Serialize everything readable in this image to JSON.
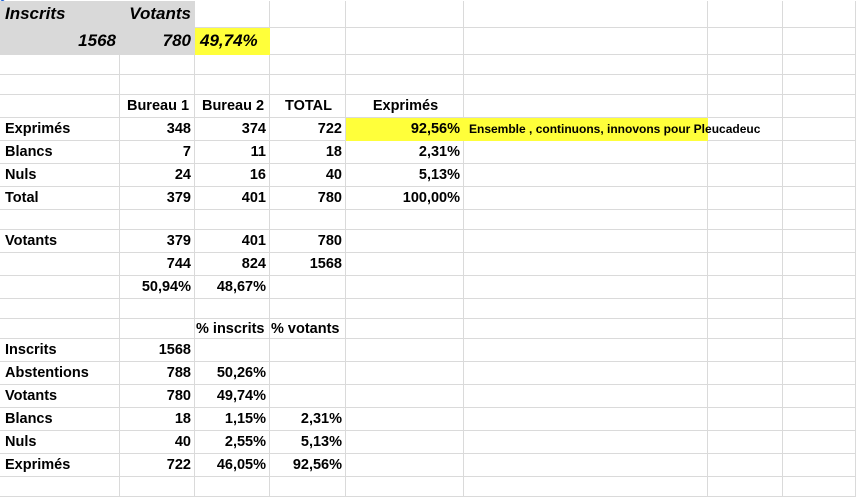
{
  "colors": {
    "highlight": "#ffff3a",
    "header_fill": "#d9d9d9",
    "gridline": "#dadada"
  },
  "rows": [
    [
      {
        "v": "Inscrits",
        "s": "gray top"
      },
      {
        "v": "Votants",
        "s": "gray top num"
      },
      {
        "v": ""
      },
      {
        "v": ""
      },
      {
        "v": ""
      },
      {
        "v": ""
      },
      {
        "v": ""
      },
      {
        "v": ""
      }
    ],
    [
      {
        "v": "1568",
        "s": "gray top num"
      },
      {
        "v": "780",
        "s": "gray top num"
      },
      {
        "v": "49,74%",
        "s": "yellow top"
      },
      {
        "v": ""
      },
      {
        "v": ""
      },
      {
        "v": ""
      },
      {
        "v": ""
      },
      {
        "v": ""
      }
    ],
    [
      {
        "v": ""
      },
      {
        "v": ""
      },
      {
        "v": ""
      },
      {
        "v": ""
      },
      {
        "v": ""
      },
      {
        "v": ""
      },
      {
        "v": ""
      },
      {
        "v": ""
      }
    ],
    [
      {
        "v": ""
      },
      {
        "v": ""
      },
      {
        "v": ""
      },
      {
        "v": ""
      },
      {
        "v": ""
      },
      {
        "v": ""
      },
      {
        "v": ""
      },
      {
        "v": ""
      }
    ],
    [
      {
        "v": ""
      },
      {
        "v": "Bureau 1",
        "s": "center"
      },
      {
        "v": "Bureau 2",
        "s": "center"
      },
      {
        "v": "TOTAL",
        "s": "center"
      },
      {
        "v": "Exprimés",
        "s": "center"
      },
      {
        "v": ""
      },
      {
        "v": ""
      },
      {
        "v": ""
      }
    ],
    [
      {
        "v": "Exprimés"
      },
      {
        "v": "348",
        "s": "num"
      },
      {
        "v": "374",
        "s": "num"
      },
      {
        "v": "722",
        "s": "num"
      },
      {
        "v": "92,56%",
        "s": "yellow num"
      },
      {
        "v": "Ensemble , continuons, innovons pour Pleucadeuc",
        "s": "yellow small"
      },
      {
        "v": ""
      },
      {
        "v": ""
      }
    ],
    [
      {
        "v": "Blancs"
      },
      {
        "v": "7",
        "s": "num"
      },
      {
        "v": "11",
        "s": "num"
      },
      {
        "v": "18",
        "s": "num"
      },
      {
        "v": "2,31%",
        "s": "num"
      },
      {
        "v": ""
      },
      {
        "v": ""
      },
      {
        "v": ""
      }
    ],
    [
      {
        "v": "Nuls"
      },
      {
        "v": "24",
        "s": "num"
      },
      {
        "v": "16",
        "s": "num"
      },
      {
        "v": "40",
        "s": "num"
      },
      {
        "v": "5,13%",
        "s": "num"
      },
      {
        "v": ""
      },
      {
        "v": ""
      },
      {
        "v": ""
      }
    ],
    [
      {
        "v": "Total"
      },
      {
        "v": "379",
        "s": "num"
      },
      {
        "v": "401",
        "s": "num"
      },
      {
        "v": "780",
        "s": "num"
      },
      {
        "v": "100,00%",
        "s": "num"
      },
      {
        "v": ""
      },
      {
        "v": ""
      },
      {
        "v": ""
      }
    ],
    [
      {
        "v": ""
      },
      {
        "v": ""
      },
      {
        "v": ""
      },
      {
        "v": ""
      },
      {
        "v": ""
      },
      {
        "v": ""
      },
      {
        "v": ""
      },
      {
        "v": ""
      }
    ],
    [
      {
        "v": "Votants"
      },
      {
        "v": "379",
        "s": "num"
      },
      {
        "v": "401",
        "s": "num"
      },
      {
        "v": "780",
        "s": "num"
      },
      {
        "v": ""
      },
      {
        "v": ""
      },
      {
        "v": ""
      },
      {
        "v": ""
      }
    ],
    [
      {
        "v": ""
      },
      {
        "v": "744",
        "s": "num"
      },
      {
        "v": "824",
        "s": "num"
      },
      {
        "v": "1568",
        "s": "num"
      },
      {
        "v": ""
      },
      {
        "v": ""
      },
      {
        "v": ""
      },
      {
        "v": ""
      }
    ],
    [
      {
        "v": ""
      },
      {
        "v": "50,94%",
        "s": "num"
      },
      {
        "v": "48,67%",
        "s": "num"
      },
      {
        "v": ""
      },
      {
        "v": ""
      },
      {
        "v": ""
      },
      {
        "v": ""
      },
      {
        "v": ""
      }
    ],
    [
      {
        "v": ""
      },
      {
        "v": ""
      },
      {
        "v": ""
      },
      {
        "v": ""
      },
      {
        "v": ""
      },
      {
        "v": ""
      },
      {
        "v": ""
      },
      {
        "v": ""
      }
    ],
    [
      {
        "v": ""
      },
      {
        "v": ""
      },
      {
        "v": "% inscrits",
        "s": "noclip"
      },
      {
        "v": "% votants",
        "s": "noclip"
      },
      {
        "v": ""
      },
      {
        "v": ""
      },
      {
        "v": ""
      },
      {
        "v": ""
      }
    ],
    [
      {
        "v": "Inscrits"
      },
      {
        "v": "1568",
        "s": "num"
      },
      {
        "v": ""
      },
      {
        "v": ""
      },
      {
        "v": ""
      },
      {
        "v": ""
      },
      {
        "v": ""
      },
      {
        "v": ""
      }
    ],
    [
      {
        "v": "Abstentions"
      },
      {
        "v": "788",
        "s": "num"
      },
      {
        "v": "50,26%",
        "s": "num"
      },
      {
        "v": ""
      },
      {
        "v": ""
      },
      {
        "v": ""
      },
      {
        "v": ""
      },
      {
        "v": ""
      }
    ],
    [
      {
        "v": "Votants"
      },
      {
        "v": "780",
        "s": "num"
      },
      {
        "v": "49,74%",
        "s": "num"
      },
      {
        "v": ""
      },
      {
        "v": ""
      },
      {
        "v": ""
      },
      {
        "v": ""
      },
      {
        "v": ""
      }
    ],
    [
      {
        "v": "Blancs"
      },
      {
        "v": "18",
        "s": "num"
      },
      {
        "v": "1,15%",
        "s": "num"
      },
      {
        "v": "2,31%",
        "s": "num"
      },
      {
        "v": ""
      },
      {
        "v": ""
      },
      {
        "v": ""
      },
      {
        "v": ""
      }
    ],
    [
      {
        "v": "Nuls"
      },
      {
        "v": "40",
        "s": "num"
      },
      {
        "v": "2,55%",
        "s": "num"
      },
      {
        "v": "5,13%",
        "s": "num"
      },
      {
        "v": ""
      },
      {
        "v": ""
      },
      {
        "v": ""
      },
      {
        "v": ""
      }
    ],
    [
      {
        "v": "Exprimés"
      },
      {
        "v": "722",
        "s": "num"
      },
      {
        "v": "46,05%",
        "s": "num"
      },
      {
        "v": "92,56%",
        "s": "num"
      },
      {
        "v": ""
      },
      {
        "v": ""
      },
      {
        "v": ""
      },
      {
        "v": ""
      }
    ],
    [
      {
        "v": ""
      },
      {
        "v": ""
      },
      {
        "v": ""
      },
      {
        "v": ""
      },
      {
        "v": ""
      },
      {
        "v": ""
      },
      {
        "v": ""
      },
      {
        "v": ""
      }
    ]
  ]
}
